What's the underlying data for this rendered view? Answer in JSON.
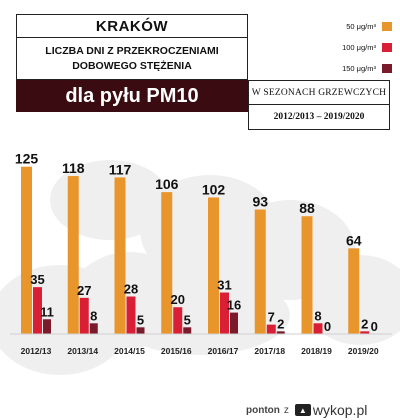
{
  "header": {
    "city": "KRAKÓW",
    "subtitle": "LICZBA DNI Z PRZEKROCZENIAMI DOBOWEGO STĘŻENIA",
    "pollutant": "dla pyłu PM10",
    "season_note": "W SEZONACH GRZEWCZYCH",
    "season_range": "2012/2013 – 2019/2020"
  },
  "legend": [
    {
      "label": "50 μg/m³",
      "color": "#e8952b"
    },
    {
      "label": "100 μg/m³",
      "color": "#d91f35"
    },
    {
      "label": "150 μg/m³",
      "color": "#7a1a2a"
    }
  ],
  "chart_data": {
    "type": "bar",
    "categories": [
      "2012/13",
      "2013/14",
      "2014/15",
      "2015/16",
      "2016/17",
      "2017/18",
      "2018/19",
      "2019/20"
    ],
    "series": [
      {
        "name": "50 μg/m³",
        "values": [
          125,
          118,
          117,
          106,
          102,
          93,
          88,
          64
        ],
        "color": "#e8952b"
      },
      {
        "name": "100 μg/m³",
        "values": [
          35,
          27,
          28,
          20,
          31,
          7,
          8,
          2
        ],
        "color": "#d91f35"
      },
      {
        "name": "150 μg/m³",
        "values": [
          11,
          8,
          5,
          5,
          16,
          2,
          0,
          0
        ],
        "color": "#7a1a2a"
      }
    ],
    "ylim": [
      0,
      130
    ],
    "grid": false,
    "legend_position": "top-right"
  },
  "footer": {
    "user": "ponton",
    "via": "z",
    "logo": "wykop.pl",
    "logo_icon": "wykop-logo-icon"
  }
}
